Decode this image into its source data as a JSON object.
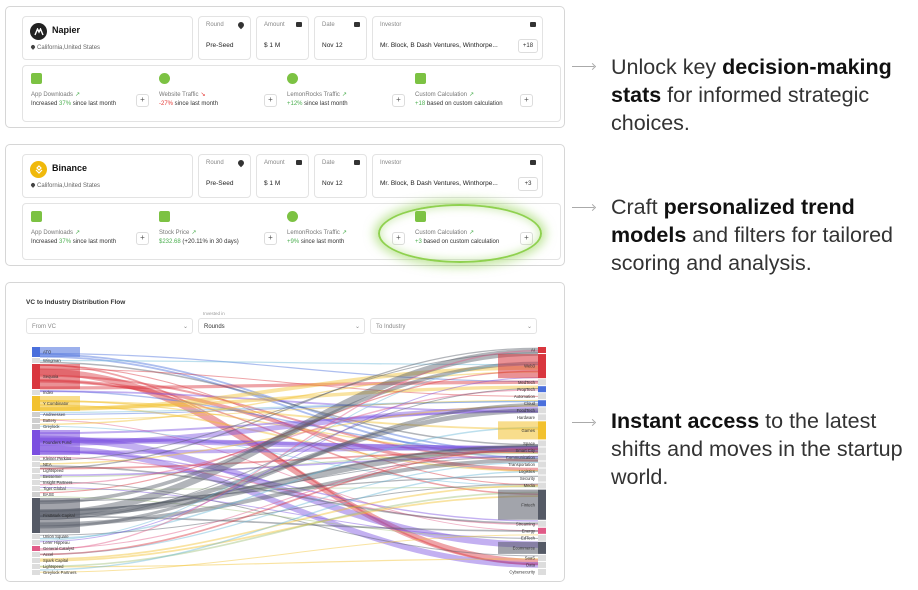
{
  "cards": [
    {
      "company": "Napier",
      "location": "California,United States",
      "logo_color": "#222222",
      "round_label": "Round",
      "round_value": "Pre-Seed",
      "amount_label": "Amount",
      "amount_value": "$ 1 M",
      "date_label": "Date",
      "date_value": "Nov 12",
      "investor_label": "Investor",
      "investor_value": "Mr. Block, B Dash Ventures, Winthorpe...",
      "investor_more": "+18",
      "stats": [
        {
          "icon": "android-icon",
          "name": "App Downloads",
          "prefix": "Increased ",
          "value": "37%",
          "suffix": " since last month",
          "tone": "pos"
        },
        {
          "icon": "globe-icon",
          "name": "Website Traffic",
          "prefix": "",
          "value": "-27%",
          "suffix": " since last month",
          "tone": "neg"
        },
        {
          "icon": "lemon-icon",
          "name": "LemonRocks Traffic",
          "prefix": "",
          "value": "+12%",
          "suffix": " since last month",
          "tone": "pos"
        },
        {
          "icon": "calculator-icon",
          "name": "Custom Calculation",
          "prefix": "",
          "value": "+18",
          "suffix": " based on custom calculation",
          "tone": "pos"
        }
      ]
    },
    {
      "company": "Binance",
      "location": "California,United States",
      "logo_color": "#f0b90b",
      "round_label": "Round",
      "round_value": "Pre-Seed",
      "amount_label": "Amount",
      "amount_value": "$ 1 M",
      "date_label": "Date",
      "date_value": "Nov 12",
      "investor_label": "Investor",
      "investor_value": "Mr. Block, B Dash Ventures, Winthorpe...",
      "investor_more": "+3",
      "stats": [
        {
          "icon": "android-icon",
          "name": "App Downloads",
          "prefix": "Increased ",
          "value": "37%",
          "suffix": " since last month",
          "tone": "pos"
        },
        {
          "icon": "chart-icon",
          "name": "Stock Price",
          "prefix": "",
          "value": "$232.68",
          "suffix": " (+20.11% in 30 days)",
          "tone": "pos"
        },
        {
          "icon": "lemon-icon",
          "name": "LemonRocks Traffic",
          "prefix": "",
          "value": "+9%",
          "suffix": " since last month",
          "tone": "pos"
        },
        {
          "icon": "calculator-icon",
          "name": "Custom Calculation",
          "prefix": "",
          "value": "+3",
          "suffix": " based on custom calculation",
          "tone": "pos"
        }
      ]
    }
  ],
  "flow": {
    "title": "VC to Industry Distribution Flow",
    "from_placeholder": "From VC",
    "invested_caption": "Invested in",
    "invested_value": "Rounds",
    "to_placeholder": "To Industry",
    "vcs": [
      {
        "name": "ATO",
        "color": "#4a6fdc",
        "weight": 2
      },
      {
        "name": "Wingman",
        "color": "#dddddd",
        "weight": 1
      },
      {
        "name": "Sequoia",
        "color": "#d9363e",
        "weight": 5
      },
      {
        "name": "Index",
        "color": "#dddddd",
        "weight": 1
      },
      {
        "name": "Y Combinator",
        "color": "#f2c12e",
        "weight": 3
      },
      {
        "name": "Andreessen",
        "color": "#cfcfcf",
        "weight": 1
      },
      {
        "name": "Battery",
        "color": "#cfcfcf",
        "weight": 1
      },
      {
        "name": "Greylock",
        "color": "#cfcfcf",
        "weight": 1
      },
      {
        "name": "Founders Fund",
        "color": "#7b4fe0",
        "weight": 5
      },
      {
        "name": "Kleiner Perkins",
        "color": "#dddddd",
        "weight": 1
      },
      {
        "name": "NEA",
        "color": "#dddddd",
        "weight": 1
      },
      {
        "name": "Lightspeed",
        "color": "#dddddd",
        "weight": 1
      },
      {
        "name": "Bessemer",
        "color": "#dddddd",
        "weight": 1
      },
      {
        "name": "Insight Partners",
        "color": "#dddddd",
        "weight": 1
      },
      {
        "name": "Tiger Global",
        "color": "#dddddd",
        "weight": 1
      },
      {
        "name": "BASE",
        "color": "#cfcfcf",
        "weight": 1
      },
      {
        "name": "FirstMark Capital",
        "color": "#555a66",
        "weight": 7
      },
      {
        "name": "Union Square",
        "color": "#dddddd",
        "weight": 1
      },
      {
        "name": "Lerer Hippeau",
        "color": "#dddddd",
        "weight": 1
      },
      {
        "name": "General Catalyst",
        "color": "#e05a87",
        "weight": 1
      },
      {
        "name": "Accel",
        "color": "#dddddd",
        "weight": 1
      },
      {
        "name": "Spark Capital",
        "color": "#dddddd",
        "weight": 1
      },
      {
        "name": "Lightspeed",
        "color": "#dddddd",
        "weight": 1
      },
      {
        "name": "Greylock Partners",
        "color": "#dddddd",
        "weight": 1
      }
    ],
    "industries": [
      {
        "name": "AI",
        "color": "#d9363e",
        "weight": 1
      },
      {
        "name": "Web3",
        "color": "#d9363e",
        "weight": 4
      },
      {
        "name": "MedTech",
        "color": "#dddddd",
        "weight": 1
      },
      {
        "name": "PropTech",
        "color": "#4a6fdc",
        "weight": 1
      },
      {
        "name": "Automation",
        "color": "#dddddd",
        "weight": 1
      },
      {
        "name": "Cloud",
        "color": "#4a6fdc",
        "weight": 1
      },
      {
        "name": "FoodTech",
        "color": "#dddddd",
        "weight": 1
      },
      {
        "name": "Hardware",
        "color": "#dddddd",
        "weight": 1
      },
      {
        "name": "Games",
        "color": "#f2c12e",
        "weight": 3
      },
      {
        "name": "Space",
        "color": "#dddddd",
        "weight": 1
      },
      {
        "name": "Smart City",
        "color": "#dddddd",
        "weight": 1
      },
      {
        "name": "Communication",
        "color": "#dddddd",
        "weight": 1
      },
      {
        "name": "Transportation",
        "color": "#dddddd",
        "weight": 1
      },
      {
        "name": "Logistics",
        "color": "#dddddd",
        "weight": 1
      },
      {
        "name": "Security",
        "color": "#dddddd",
        "weight": 1
      },
      {
        "name": "Media",
        "color": "#dddddd",
        "weight": 1
      },
      {
        "name": "Fintech",
        "color": "#555a66",
        "weight": 5
      },
      {
        "name": "Streaming",
        "color": "#dddddd",
        "weight": 1
      },
      {
        "name": "Energy",
        "color": "#e05a87",
        "weight": 1
      },
      {
        "name": "EdTech",
        "color": "#dddddd",
        "weight": 1
      },
      {
        "name": "Ecommerce",
        "color": "#555a66",
        "weight": 2
      },
      {
        "name": "SaaS",
        "color": "#dddddd",
        "weight": 1
      },
      {
        "name": "Data",
        "color": "#dddddd",
        "weight": 1
      },
      {
        "name": "Cybersecurity",
        "color": "#dddddd",
        "weight": 1
      }
    ],
    "flow_colors": [
      "#d9363e",
      "#7b4fe0",
      "#555a66",
      "#f2c12e",
      "#4a6fdc",
      "#e05a87",
      "#9fc27a",
      "#6bb7d6"
    ]
  },
  "callouts": [
    {
      "pre": "Unlock key ",
      "bold": "decision-making stats",
      "post": " for informed strategic choices."
    },
    {
      "pre": "Craft ",
      "bold": "personalized trend models",
      "post": " and filters for tailored scoring and analysis."
    },
    {
      "pre": "",
      "bold": "Instant access",
      "post": " to the latest shifts and moves in the startup world."
    }
  ]
}
